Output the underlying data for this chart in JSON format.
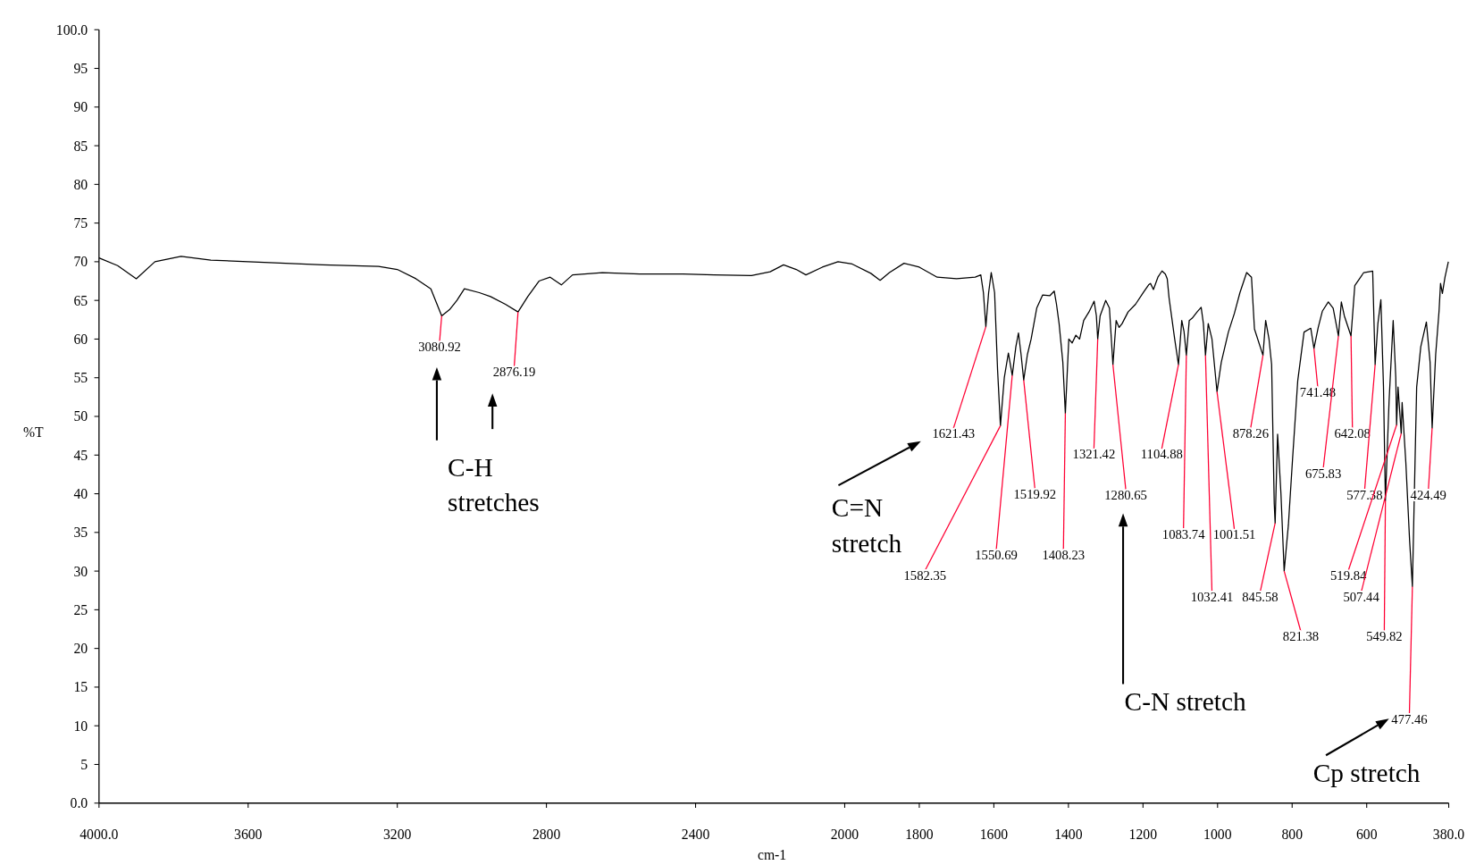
{
  "chart_data": {
    "type": "line",
    "xlabel": "cm-1",
    "ylabel": "%T",
    "xlim": [
      4000,
      380
    ],
    "ylim": [
      0,
      100
    ],
    "xticks": [
      {
        "value": 4000,
        "label": "4000.0"
      },
      3600,
      3200,
      2800,
      2400,
      2000,
      1800,
      1600,
      1400,
      1200,
      1000,
      800,
      600,
      {
        "value": 380,
        "label": "380.0"
      }
    ],
    "yticks": [
      {
        "value": 0,
        "label": "0.0"
      },
      5,
      10,
      15,
      20,
      25,
      30,
      35,
      40,
      45,
      50,
      55,
      60,
      65,
      70,
      75,
      80,
      85,
      90,
      95,
      {
        "value": 100,
        "label": "100.0"
      }
    ],
    "grid": false,
    "marker": "none",
    "line_style": "solid",
    "series": [
      {
        "color": "#000000",
        "x": [
          4000,
          3950,
          3900,
          3850,
          3780,
          3700,
          3600,
          3400,
          3250,
          3200,
          3150,
          3110,
          3080.92,
          3060,
          3040,
          3020,
          2980,
          2950,
          2910,
          2876.19,
          2850,
          2820,
          2790,
          2760,
          2730,
          2650,
          2550,
          2434,
          2350,
          2250,
          2200,
          2164,
          2130,
          2104,
          2060,
          2018,
          1980,
          1930,
          1905,
          1880,
          1841,
          1800,
          1752,
          1700,
          1650,
          1635,
          1628,
          1621.43,
          1614,
          1607,
          1598,
          1590,
          1582.35,
          1572,
          1561,
          1550.69,
          1541,
          1534,
          1527,
          1519.92,
          1510,
          1500,
          1485,
          1469,
          1450,
          1438,
          1432,
          1425,
          1415,
          1408.23,
          1399,
          1390,
          1380,
          1370,
          1359,
          1345,
          1331,
          1325,
          1321.42,
          1315,
          1300,
          1290,
          1280.65,
          1272,
          1264,
          1256,
          1240,
          1220,
          1198,
          1185,
          1180,
          1172,
          1160,
          1149,
          1140,
          1135,
          1130,
          1115,
          1104.88,
          1096,
          1090,
          1083.74,
          1076,
          1068,
          1055,
          1044,
          1038,
          1032.41,
          1025,
          1015,
          1001.51,
          990,
          971,
          955,
          940,
          922,
          909,
          901,
          878.26,
          871,
          862,
          855,
          848,
          845.58,
          839,
          830,
          821.38,
          810,
          799,
          785,
          768,
          750,
          741.48,
          730,
          719,
          703,
          690,
          675.83,
          668,
          660,
          642.08,
          632,
          608,
          584,
          577.38,
          570,
          562,
          555,
          549.82,
          540,
          529,
          522,
          519.84,
          516,
          507.44,
          505,
          495,
          485,
          477.46,
          470,
          466,
          455,
          440,
          430,
          424.49,
          415,
          406,
          402,
          397,
          390,
          381
        ],
        "values": [
          70.5,
          69.5,
          67.8,
          70,
          70.7,
          70.2,
          70,
          69.6,
          69.4,
          69,
          67.8,
          66.5,
          63,
          63.8,
          65,
          66.5,
          66,
          65.5,
          64.5,
          63.5,
          65.5,
          67.5,
          68,
          67,
          68.3,
          68.6,
          68.4,
          68.4,
          68.3,
          68.2,
          68.7,
          69.6,
          69,
          68.3,
          69.3,
          70,
          69.7,
          68.5,
          67.6,
          68.6,
          69.8,
          69.3,
          68,
          67.8,
          68,
          68.3,
          66,
          61.6,
          66,
          68.6,
          66,
          56,
          48.8,
          55,
          58.2,
          55.3,
          59,
          60.8,
          58,
          54.7,
          58,
          60,
          64,
          65.7,
          65.6,
          66.2,
          64.5,
          62,
          57,
          50.4,
          60,
          59.5,
          60.5,
          60,
          62.4,
          63.5,
          64.9,
          63,
          60,
          63,
          65,
          64,
          56.7,
          62.4,
          61.5,
          62,
          63.5,
          64.5,
          66.1,
          67,
          67.2,
          66.4,
          68,
          68.8,
          68.4,
          67.8,
          65.3,
          60,
          56.7,
          62.4,
          61,
          57.9,
          62.4,
          62.7,
          63.5,
          64.1,
          62,
          57.9,
          62,
          60,
          53.2,
          57,
          60.9,
          63.3,
          66,
          68.6,
          68,
          61.3,
          57.9,
          62.4,
          60,
          56.7,
          38.7,
          36.2,
          47.7,
          40,
          30,
          36,
          44.4,
          54.6,
          60.9,
          61.4,
          58.8,
          61.5,
          63.6,
          64.8,
          64,
          60.4,
          64.8,
          63,
          60.4,
          66.9,
          68.6,
          68.8,
          56.7,
          62,
          65.1,
          53.8,
          39.1,
          52,
          62.4,
          55,
          48.9,
          53.8,
          47.8,
          51.8,
          44,
          34,
          28,
          45,
          53.8,
          59,
          62.2,
          57,
          48.5,
          58,
          63.6,
          67.2,
          65.9,
          68,
          70
        ]
      }
    ],
    "annotations": [
      {
        "text": "3080.92",
        "x": 3080.92,
        "y": 63
      },
      {
        "text": "2876.19",
        "x": 2876.19,
        "y": 63.5
      },
      {
        "text": "1621.43",
        "x": 1621.43,
        "y": 61.6
      },
      {
        "text": "1582.35",
        "x": 1582.35,
        "y": 48.8
      },
      {
        "text": "1550.69",
        "x": 1550.69,
        "y": 55.3
      },
      {
        "text": "1519.92",
        "x": 1519.92,
        "y": 54.7
      },
      {
        "text": "1408.23",
        "x": 1408.23,
        "y": 50.4
      },
      {
        "text": "1321.42",
        "x": 1321.42,
        "y": 60
      },
      {
        "text": "1280.65",
        "x": 1280.65,
        "y": 56.7
      },
      {
        "text": "1104.88",
        "x": 1104.88,
        "y": 56.7
      },
      {
        "text": "1083.74",
        "x": 1083.74,
        "y": 57.9
      },
      {
        "text": "1032.41",
        "x": 1032.41,
        "y": 57.9
      },
      {
        "text": "1001.51",
        "x": 1001.51,
        "y": 53.2
      },
      {
        "text": "878.26",
        "x": 878.26,
        "y": 57.9
      },
      {
        "text": "845.58",
        "x": 845.58,
        "y": 36.2
      },
      {
        "text": "821.38",
        "x": 821.38,
        "y": 30
      },
      {
        "text": "741.48",
        "x": 741.48,
        "y": 58.8
      },
      {
        "text": "675.83",
        "x": 675.83,
        "y": 60.4
      },
      {
        "text": "642.08",
        "x": 642.08,
        "y": 60.4
      },
      {
        "text": "577.38",
        "x": 577.38,
        "y": 56.7
      },
      {
        "text": "549.82",
        "x": 549.82,
        "y": 39.1
      },
      {
        "text": "519.84",
        "x": 519.84,
        "y": 48.9
      },
      {
        "text": "507.44",
        "x": 507.44,
        "y": 47.8
      },
      {
        "text": "477.46",
        "x": 477.46,
        "y": 28
      },
      {
        "text": "424.49",
        "x": 424.49,
        "y": 48.5
      },
      "C-H stretches",
      "C=N stretch",
      "C-N stretch",
      "Cp stretch"
    ]
  }
}
